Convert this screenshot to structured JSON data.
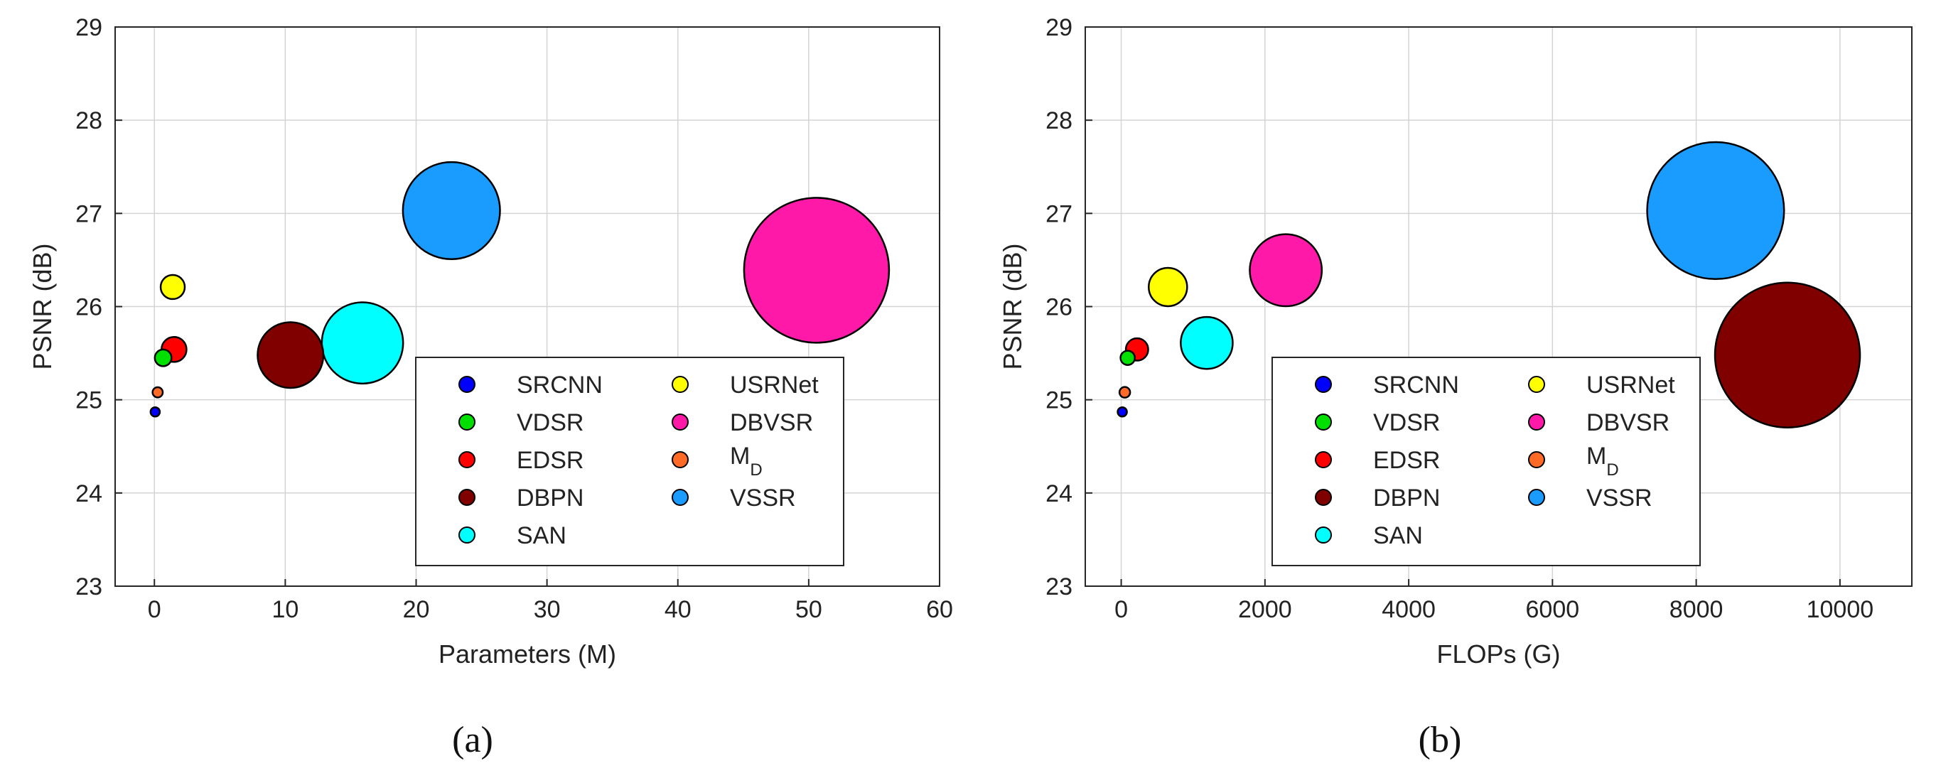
{
  "chart_data": [
    {
      "type": "scatter",
      "subtype": "bubble",
      "panel_label": "a",
      "xlabel": "Parameters (M)",
      "ylabel": "PSNR (dB)",
      "xlim": [
        -3,
        60
      ],
      "ylim": [
        23,
        29
      ],
      "xticks": [
        0,
        10,
        20,
        30,
        40,
        50,
        60
      ],
      "yticks": [
        23,
        24,
        25,
        26,
        27,
        28,
        29
      ],
      "grid": true,
      "legend_placement": "lower-right",
      "legend_columns": [
        [
          "SRCNN",
          "VDSR",
          "EDSR",
          "DBPN",
          "SAN"
        ],
        [
          "USRNet",
          "DBVSR",
          "M_D",
          "VSSR"
        ]
      ],
      "series": [
        {
          "name": "SRCNN",
          "x": 0.06,
          "y": 24.87,
          "size": 0.06,
          "color": "#0000ff"
        },
        {
          "name": "VDSR",
          "x": 0.67,
          "y": 25.45,
          "size": 0.67,
          "color": "#00e000"
        },
        {
          "name": "EDSR",
          "x": 1.5,
          "y": 25.54,
          "size": 1.5,
          "color": "#ff0000"
        },
        {
          "name": "DBPN",
          "x": 10.4,
          "y": 25.48,
          "size": 10.4,
          "color": "#800000"
        },
        {
          "name": "SAN",
          "x": 15.9,
          "y": 25.61,
          "size": 15.9,
          "color": "#00ffff"
        },
        {
          "name": "USRNet",
          "x": 1.4,
          "y": 26.21,
          "size": 1.4,
          "color": "#ffff00"
        },
        {
          "name": "DBVSR",
          "x": 50.6,
          "y": 26.39,
          "size": 50.6,
          "color": "#ff19a8"
        },
        {
          "name": "M_D",
          "x": 0.25,
          "y": 25.08,
          "size": 0.25,
          "color": "#ff6a26"
        },
        {
          "name": "VSSR",
          "x": 22.7,
          "y": 27.03,
          "size": 22.7,
          "color": "#1a9cff"
        }
      ]
    },
    {
      "type": "scatter",
      "subtype": "bubble",
      "panel_label": "b",
      "xlabel": "FLOPs (G)",
      "ylabel": "PSNR (dB)",
      "xlim": [
        -500,
        11000
      ],
      "ylim": [
        23,
        29
      ],
      "xticks": [
        0,
        2000,
        4000,
        6000,
        8000,
        10000
      ],
      "yticks": [
        23,
        24,
        25,
        26,
        27,
        28,
        29
      ],
      "grid": true,
      "legend_placement": "lower-right",
      "legend_columns": [
        [
          "SRCNN",
          "VDSR",
          "EDSR",
          "DBPN",
          "SAN"
        ],
        [
          "USRNet",
          "DBVSR",
          "M_D",
          "VSSR"
        ]
      ],
      "series": [
        {
          "name": "SRCNN",
          "x": 15,
          "y": 24.87,
          "size": 15,
          "color": "#0000ff"
        },
        {
          "name": "VDSR",
          "x": 90,
          "y": 25.45,
          "size": 90,
          "color": "#00e000"
        },
        {
          "name": "EDSR",
          "x": 220,
          "y": 25.54,
          "size": 220,
          "color": "#ff0000"
        },
        {
          "name": "DBPN",
          "x": 9270,
          "y": 25.48,
          "size": 9270,
          "color": "#800000"
        },
        {
          "name": "SAN",
          "x": 1190,
          "y": 25.61,
          "size": 1190,
          "color": "#00ffff"
        },
        {
          "name": "USRNet",
          "x": 650,
          "y": 26.21,
          "size": 650,
          "color": "#ffff00"
        },
        {
          "name": "DBVSR",
          "x": 2290,
          "y": 26.39,
          "size": 2290,
          "color": "#ff19a8"
        },
        {
          "name": "M_D",
          "x": 50,
          "y": 25.08,
          "size": 50,
          "color": "#ff6a26"
        },
        {
          "name": "VSSR",
          "x": 8270,
          "y": 27.03,
          "size": 8270,
          "color": "#1a9cff"
        }
      ]
    }
  ],
  "captions": [
    "(a)",
    "(b)"
  ]
}
